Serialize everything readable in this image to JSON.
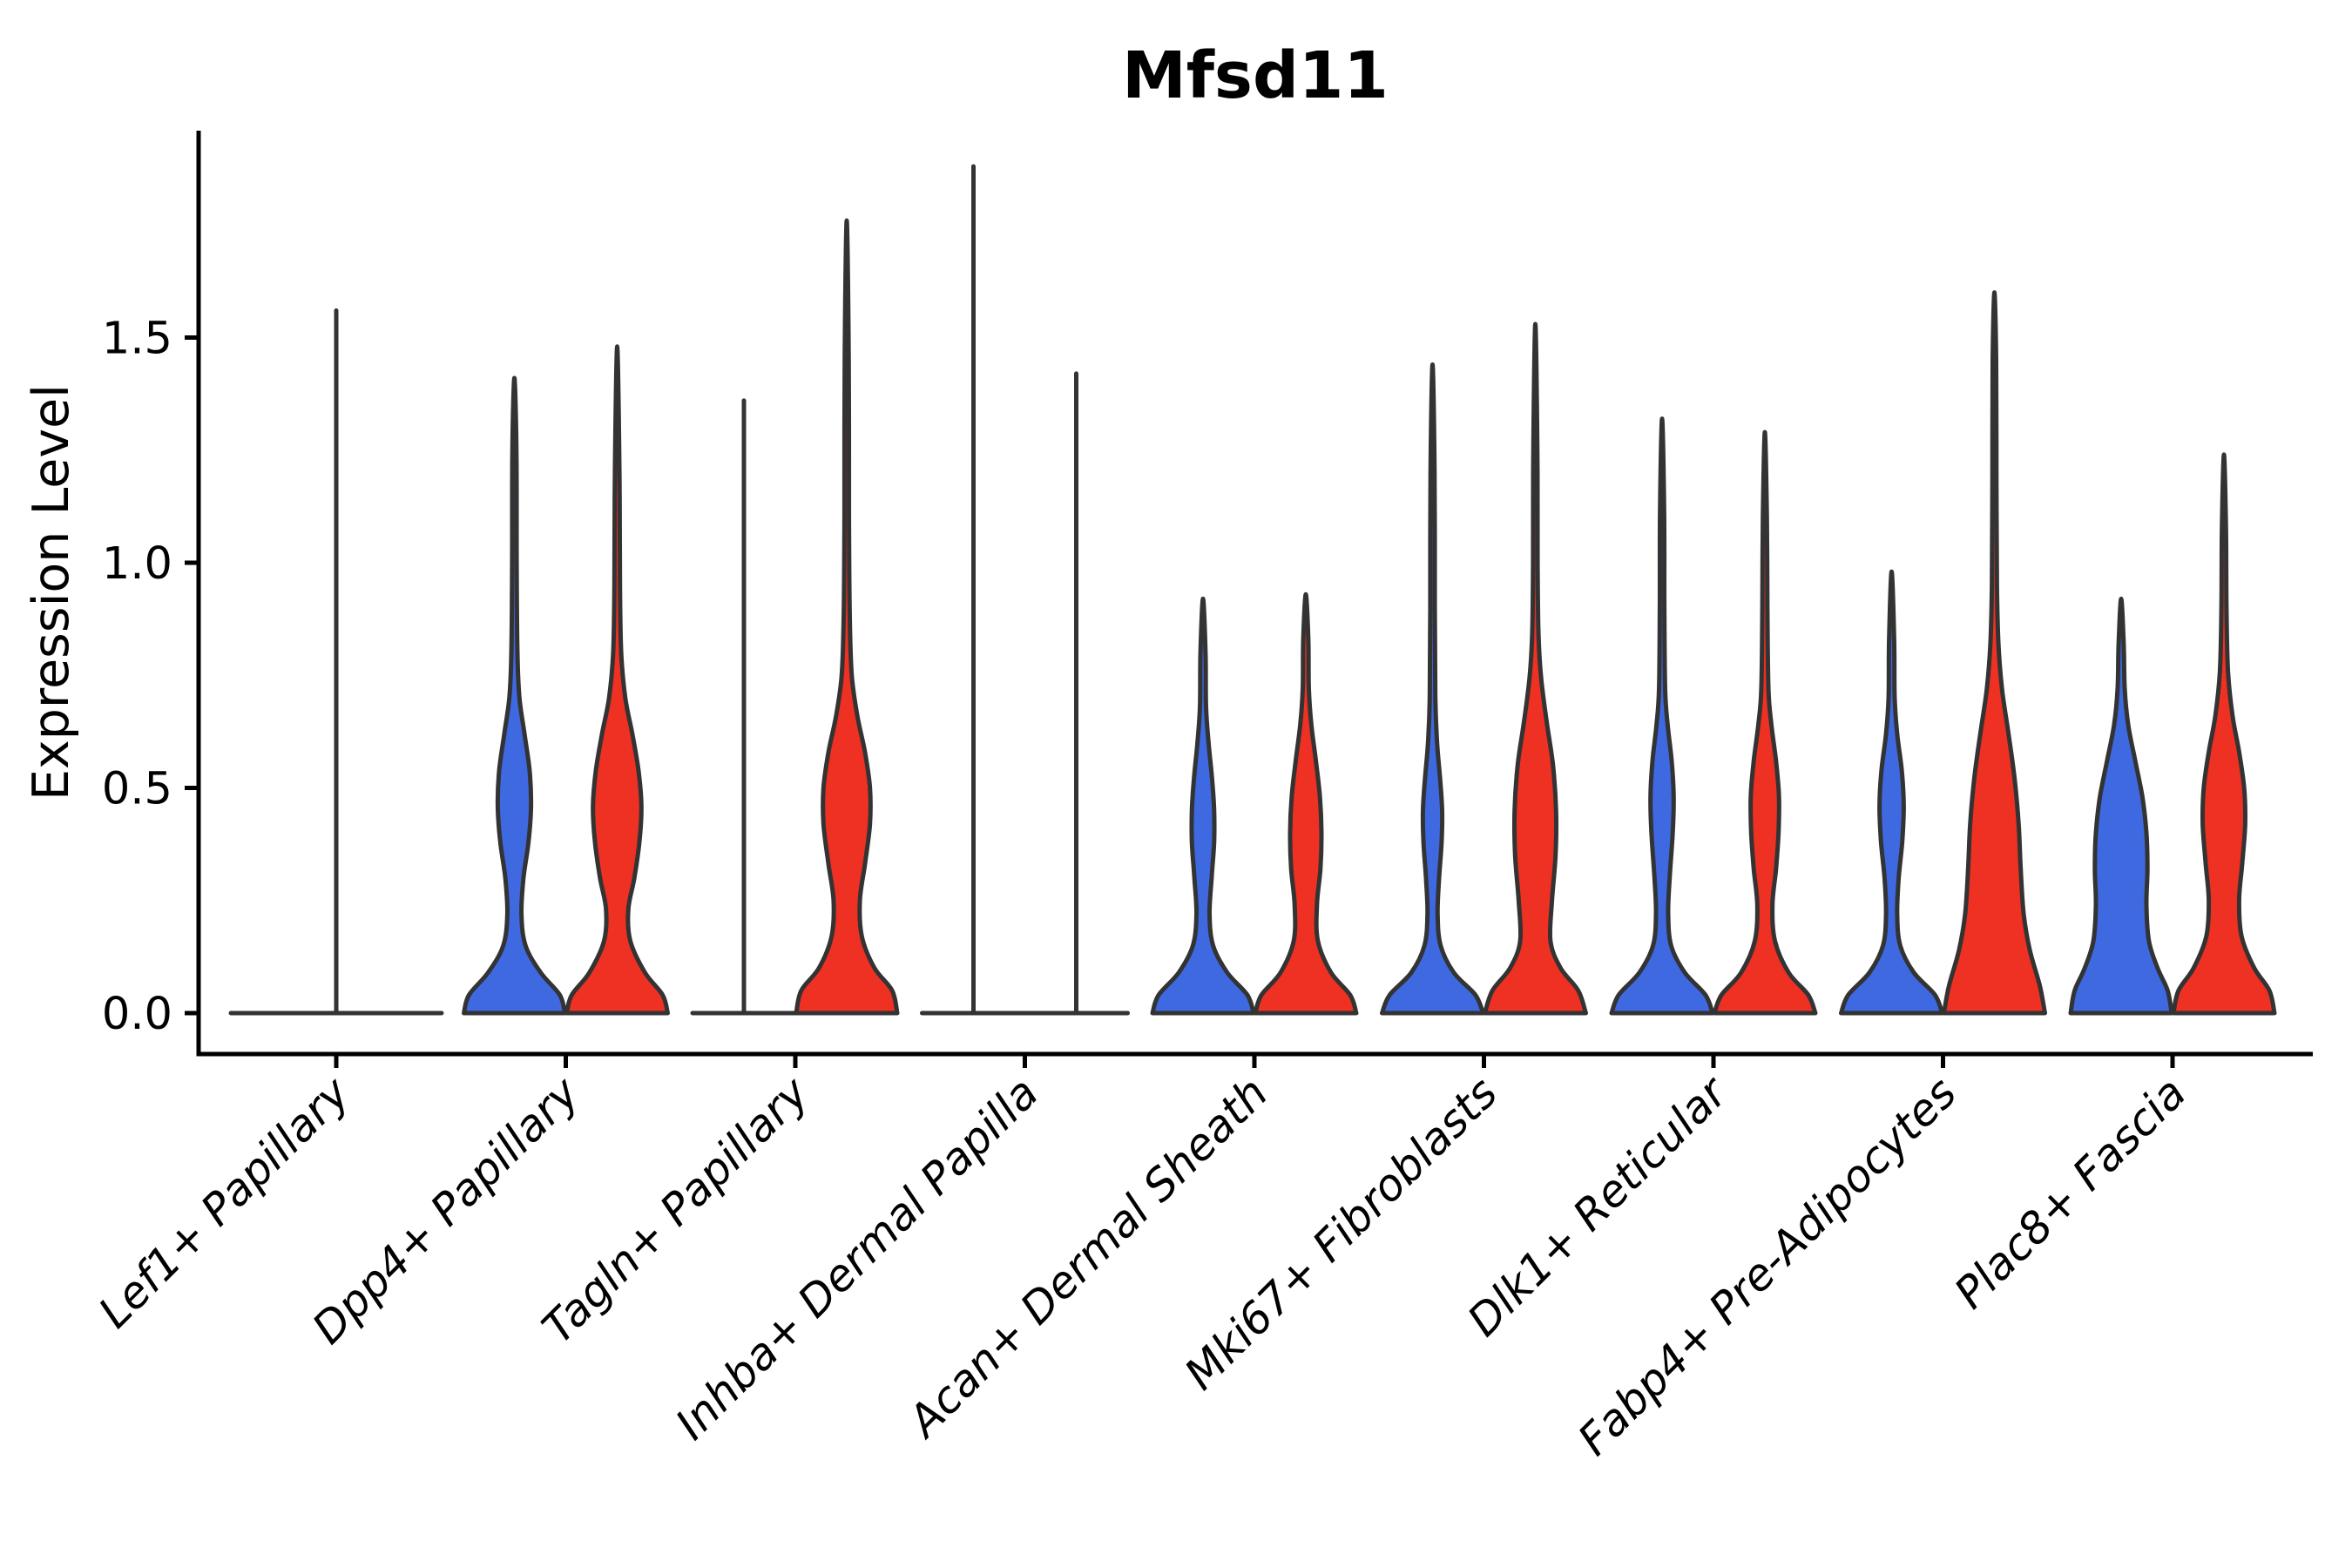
{
  "chart_data": {
    "type": "violin",
    "title": "Mfsd11",
    "xlabel": "",
    "ylabel": "Expression Level",
    "legend": "none",
    "grid": false,
    "ylim": [
      -0.09,
      1.96
    ],
    "yticks": [
      {
        "label": "0.0",
        "value": 0.0
      },
      {
        "label": "0.5",
        "value": 0.5
      },
      {
        "label": "1.0",
        "value": 1.0
      },
      {
        "label": "1.5",
        "value": 1.5
      }
    ],
    "colors": {
      "blue": "#3E69E1",
      "red": "#EE3123",
      "outline": "#333333",
      "axis": "#000000"
    },
    "group_colors_note": "each category shows a blue (left) and red (right) violin; some collapsed to baseline+spike lines",
    "categories": [
      {
        "label": "Lef1+ Papillary",
        "violins": [
          {
            "group": "merged",
            "color": "none",
            "kind": "line",
            "offset": 0,
            "base_halfwidth": 2.05,
            "top": 1.56
          }
        ]
      },
      {
        "label": "Dpp4+ Papillary",
        "violins": [
          {
            "group": "blue",
            "color": "blue",
            "kind": "violin",
            "offset": -1,
            "top": 1.41,
            "profile": [
              [
                0,
                1.0
              ],
              [
                0.04,
                0.9
              ],
              [
                0.09,
                0.52
              ],
              [
                0.15,
                0.22
              ],
              [
                0.22,
                0.14
              ],
              [
                0.3,
                0.18
              ],
              [
                0.38,
                0.28
              ],
              [
                0.46,
                0.33
              ],
              [
                0.54,
                0.3
              ],
              [
                0.62,
                0.2
              ],
              [
                0.7,
                0.1
              ],
              [
                0.8,
                0.06
              ],
              [
                1.0,
                0.045
              ],
              [
                1.25,
                0.04
              ],
              [
                1.41,
                0
              ]
            ]
          },
          {
            "group": "red",
            "color": "red",
            "kind": "violin",
            "offset": 1,
            "top": 1.48,
            "profile": [
              [
                0,
                1.0
              ],
              [
                0.04,
                0.9
              ],
              [
                0.09,
                0.55
              ],
              [
                0.16,
                0.26
              ],
              [
                0.23,
                0.22
              ],
              [
                0.3,
                0.34
              ],
              [
                0.38,
                0.44
              ],
              [
                0.46,
                0.48
              ],
              [
                0.54,
                0.42
              ],
              [
                0.62,
                0.3
              ],
              [
                0.7,
                0.16
              ],
              [
                0.8,
                0.08
              ],
              [
                0.95,
                0.055
              ],
              [
                1.2,
                0.045
              ],
              [
                1.48,
                0
              ]
            ]
          }
        ]
      },
      {
        "label": "Tagln+ Papillary",
        "violins": [
          {
            "group": "blue",
            "color": "none",
            "kind": "line",
            "offset": -1,
            "base_halfwidth": 1.0,
            "top": 1.36
          },
          {
            "group": "red",
            "color": "red",
            "kind": "violin",
            "offset": 1,
            "top": 1.76,
            "profile": [
              [
                0,
                1.0
              ],
              [
                0.05,
                0.9
              ],
              [
                0.1,
                0.55
              ],
              [
                0.17,
                0.3
              ],
              [
                0.25,
                0.26
              ],
              [
                0.33,
                0.36
              ],
              [
                0.42,
                0.46
              ],
              [
                0.5,
                0.46
              ],
              [
                0.58,
                0.36
              ],
              [
                0.66,
                0.21
              ],
              [
                0.75,
                0.1
              ],
              [
                0.88,
                0.06
              ],
              [
                1.1,
                0.045
              ],
              [
                1.45,
                0.04
              ],
              [
                1.76,
                0
              ]
            ]
          }
        ]
      },
      {
        "label": "Inhba+ Dermal Papilla",
        "violins": [
          {
            "group": "blue",
            "color": "none",
            "kind": "line",
            "offset": -1,
            "base_halfwidth": 1.0,
            "top": 1.88
          },
          {
            "group": "red",
            "color": "none",
            "kind": "line",
            "offset": 1,
            "base_halfwidth": 1.0,
            "top": 1.42
          }
        ]
      },
      {
        "label": "Acan+ Dermal Sheath",
        "violins": [
          {
            "group": "blue",
            "color": "blue",
            "kind": "violin",
            "offset": -1,
            "top": 0.92,
            "profile": [
              [
                0,
                1.0
              ],
              [
                0.04,
                0.88
              ],
              [
                0.09,
                0.48
              ],
              [
                0.15,
                0.2
              ],
              [
                0.22,
                0.13
              ],
              [
                0.3,
                0.17
              ],
              [
                0.38,
                0.22
              ],
              [
                0.45,
                0.22
              ],
              [
                0.52,
                0.18
              ],
              [
                0.6,
                0.11
              ],
              [
                0.68,
                0.06
              ],
              [
                0.8,
                0.05
              ],
              [
                0.92,
                0
              ]
            ]
          },
          {
            "group": "red",
            "color": "red",
            "kind": "violin",
            "offset": 1,
            "top": 0.93,
            "profile": [
              [
                0,
                1.0
              ],
              [
                0.04,
                0.88
              ],
              [
                0.09,
                0.5
              ],
              [
                0.16,
                0.24
              ],
              [
                0.24,
                0.22
              ],
              [
                0.32,
                0.29
              ],
              [
                0.4,
                0.31
              ],
              [
                0.48,
                0.28
              ],
              [
                0.56,
                0.2
              ],
              [
                0.64,
                0.11
              ],
              [
                0.72,
                0.06
              ],
              [
                0.83,
                0.05
              ],
              [
                0.93,
                0
              ]
            ]
          }
        ]
      },
      {
        "label": "Mki67+ Fibroblasts",
        "violins": [
          {
            "group": "blue",
            "color": "blue",
            "kind": "violin",
            "offset": -1,
            "top": 1.44,
            "profile": [
              [
                0,
                1.0
              ],
              [
                0.04,
                0.85
              ],
              [
                0.09,
                0.42
              ],
              [
                0.15,
                0.16
              ],
              [
                0.22,
                0.1
              ],
              [
                0.3,
                0.13
              ],
              [
                0.38,
                0.18
              ],
              [
                0.45,
                0.19
              ],
              [
                0.52,
                0.15
              ],
              [
                0.6,
                0.09
              ],
              [
                0.7,
                0.055
              ],
              [
                0.9,
                0.045
              ],
              [
                1.2,
                0.04
              ],
              [
                1.44,
                0
              ]
            ]
          },
          {
            "group": "red",
            "color": "red",
            "kind": "violin",
            "offset": 1,
            "top": 1.53,
            "profile": [
              [
                0,
                1.0
              ],
              [
                0.05,
                0.85
              ],
              [
                0.1,
                0.5
              ],
              [
                0.16,
                0.3
              ],
              [
                0.25,
                0.33
              ],
              [
                0.35,
                0.4
              ],
              [
                0.45,
                0.41
              ],
              [
                0.55,
                0.35
              ],
              [
                0.65,
                0.22
              ],
              [
                0.75,
                0.11
              ],
              [
                0.85,
                0.06
              ],
              [
                1.0,
                0.045
              ],
              [
                1.25,
                0.04
              ],
              [
                1.53,
                0
              ]
            ]
          }
        ]
      },
      {
        "label": "Dlk1+ Reticular",
        "violins": [
          {
            "group": "blue",
            "color": "blue",
            "kind": "violin",
            "offset": -1,
            "top": 1.32,
            "profile": [
              [
                0,
                1.0
              ],
              [
                0.04,
                0.86
              ],
              [
                0.09,
                0.45
              ],
              [
                0.15,
                0.18
              ],
              [
                0.22,
                0.12
              ],
              [
                0.3,
                0.15
              ],
              [
                0.4,
                0.21
              ],
              [
                0.48,
                0.23
              ],
              [
                0.56,
                0.19
              ],
              [
                0.64,
                0.11
              ],
              [
                0.72,
                0.06
              ],
              [
                0.9,
                0.045
              ],
              [
                1.12,
                0.04
              ],
              [
                1.32,
                0
              ]
            ]
          },
          {
            "group": "red",
            "color": "red",
            "kind": "violin",
            "offset": 1,
            "top": 1.29,
            "profile": [
              [
                0,
                1.0
              ],
              [
                0.04,
                0.86
              ],
              [
                0.09,
                0.47
              ],
              [
                0.16,
                0.2
              ],
              [
                0.24,
                0.15
              ],
              [
                0.32,
                0.22
              ],
              [
                0.4,
                0.27
              ],
              [
                0.48,
                0.28
              ],
              [
                0.56,
                0.22
              ],
              [
                0.64,
                0.13
              ],
              [
                0.72,
                0.07
              ],
              [
                0.9,
                0.05
              ],
              [
                1.1,
                0.04
              ],
              [
                1.29,
                0
              ]
            ]
          }
        ]
      },
      {
        "label": "Fabp4+ Pre-Adipocytes",
        "violins": [
          {
            "group": "blue",
            "color": "blue",
            "kind": "violin",
            "offset": -1,
            "top": 0.98,
            "profile": [
              [
                0,
                1.0
              ],
              [
                0.04,
                0.86
              ],
              [
                0.09,
                0.44
              ],
              [
                0.15,
                0.17
              ],
              [
                0.22,
                0.11
              ],
              [
                0.3,
                0.14
              ],
              [
                0.38,
                0.21
              ],
              [
                0.46,
                0.24
              ],
              [
                0.54,
                0.2
              ],
              [
                0.62,
                0.11
              ],
              [
                0.7,
                0.06
              ],
              [
                0.83,
                0.05
              ],
              [
                0.98,
                0
              ]
            ]
          },
          {
            "group": "red",
            "color": "red",
            "kind": "violin",
            "offset": 1,
            "top": 1.6,
            "profile": [
              [
                0,
                1.0
              ],
              [
                0.06,
                0.9
              ],
              [
                0.14,
                0.7
              ],
              [
                0.22,
                0.58
              ],
              [
                0.32,
                0.52
              ],
              [
                0.42,
                0.48
              ],
              [
                0.52,
                0.4
              ],
              [
                0.62,
                0.28
              ],
              [
                0.72,
                0.15
              ],
              [
                0.82,
                0.08
              ],
              [
                0.95,
                0.05
              ],
              [
                1.2,
                0.04
              ],
              [
                1.45,
                0.035
              ],
              [
                1.6,
                0
              ]
            ]
          }
        ]
      },
      {
        "label": "Plac8+ Fascia",
        "violins": [
          {
            "group": "blue",
            "color": "blue",
            "kind": "violin",
            "offset": -1,
            "top": 0.92,
            "profile": [
              [
                0,
                1.0
              ],
              [
                0.05,
                0.92
              ],
              [
                0.1,
                0.72
              ],
              [
                0.16,
                0.55
              ],
              [
                0.24,
                0.5
              ],
              [
                0.32,
                0.52
              ],
              [
                0.4,
                0.5
              ],
              [
                0.48,
                0.42
              ],
              [
                0.56,
                0.28
              ],
              [
                0.64,
                0.14
              ],
              [
                0.72,
                0.07
              ],
              [
                0.82,
                0.05
              ],
              [
                0.92,
                0
              ]
            ]
          },
          {
            "group": "red",
            "color": "red",
            "kind": "violin",
            "offset": 1,
            "top": 1.24,
            "profile": [
              [
                0,
                1.0
              ],
              [
                0.05,
                0.9
              ],
              [
                0.1,
                0.6
              ],
              [
                0.17,
                0.35
              ],
              [
                0.25,
                0.3
              ],
              [
                0.33,
                0.36
              ],
              [
                0.42,
                0.42
              ],
              [
                0.5,
                0.4
              ],
              [
                0.58,
                0.3
              ],
              [
                0.66,
                0.17
              ],
              [
                0.76,
                0.08
              ],
              [
                0.9,
                0.05
              ],
              [
                1.08,
                0.04
              ],
              [
                1.24,
                0
              ]
            ]
          }
        ]
      }
    ]
  }
}
